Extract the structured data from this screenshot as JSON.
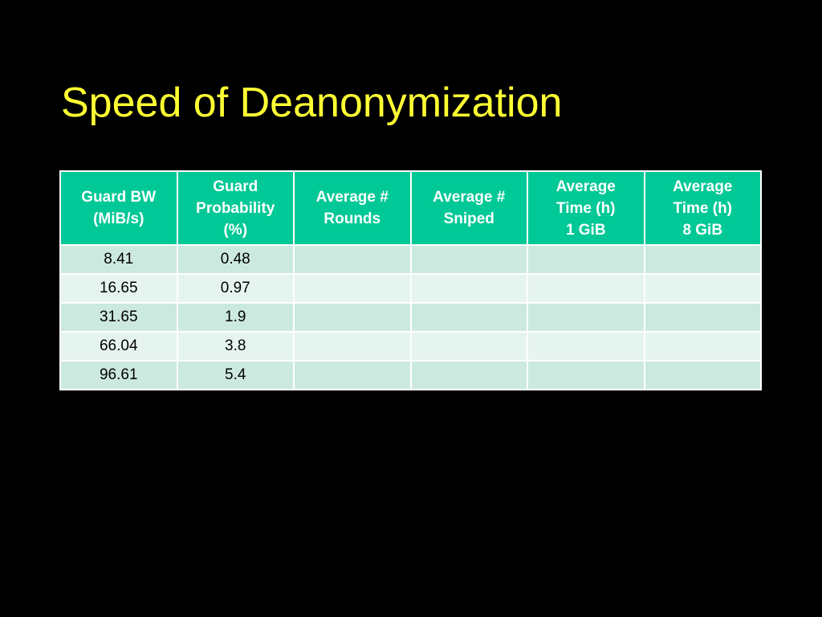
{
  "slide": {
    "title": "Speed of Deanonymization"
  },
  "table": {
    "headers": [
      "Guard BW\n(MiB/s)",
      "Guard\nProbability\n(%)",
      "Average #\nRounds",
      "Average #\nSniped",
      "Average\nTime (h)\n1 GiB",
      "Average\nTime (h)\n8 GiB"
    ],
    "rows": [
      [
        "8.41",
        "0.48",
        "",
        "",
        "",
        ""
      ],
      [
        "16.65",
        "0.97",
        "",
        "",
        "",
        ""
      ],
      [
        "31.65",
        "1.9",
        "",
        "",
        "",
        ""
      ],
      [
        "66.04",
        "3.8",
        "",
        "",
        "",
        ""
      ],
      [
        "96.61",
        "5.4",
        "",
        "",
        "",
        ""
      ]
    ]
  },
  "colors": {
    "background": "#000000",
    "title": "#ffff33",
    "header_fill": "#00c896",
    "row_fill_dark": "#cce9df",
    "row_fill_light": "#e6f4ef"
  }
}
